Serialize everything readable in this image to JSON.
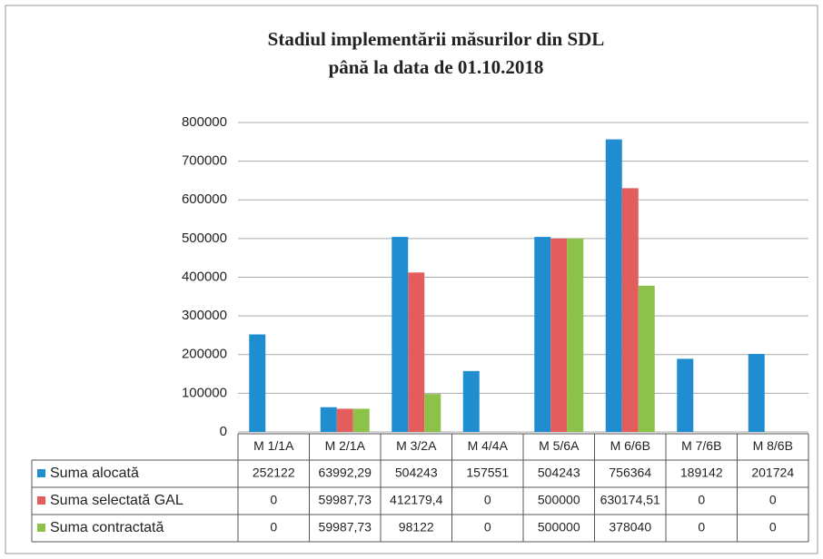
{
  "chart_data": {
    "type": "bar",
    "title": "Stadiul implementării măsurilor  din SDL",
    "subtitle": "până la data de  01.10.2018",
    "categories": [
      "M 1/1A",
      "M 2/1A",
      "M 3/2A",
      "M 4/4A",
      "M 5/6A",
      "M 6/6B",
      "M 7/6B",
      "M 8/6B"
    ],
    "series": [
      {
        "name": "Suma  alocată",
        "color": "#1f8dd0",
        "values": [
          252122,
          63992.29,
          504243,
          157551,
          504243,
          756364,
          189142,
          201724
        ],
        "value_labels": [
          "252122",
          "63992,29",
          "504243",
          "157551",
          "504243",
          "756364",
          "189142",
          "201724"
        ]
      },
      {
        "name": "Suma selectată GAL",
        "color": "#e35d5d",
        "values": [
          0,
          59987.73,
          412179.4,
          0,
          500000,
          630174.51,
          0,
          0
        ],
        "value_labels": [
          "0",
          "59987,73",
          "412179,4",
          "0",
          "500000",
          "630174,51",
          "0",
          "0"
        ]
      },
      {
        "name": "Suma contractată",
        "color": "#8cc24a",
        "values": [
          0,
          59987.73,
          98122,
          0,
          500000,
          378040,
          0,
          0
        ],
        "value_labels": [
          "0",
          "59987,73",
          "98122",
          "0",
          "500000",
          "378040",
          "0",
          "0"
        ]
      }
    ],
    "ylim": [
      0,
      800000
    ],
    "yticks": [
      0,
      100000,
      200000,
      300000,
      400000,
      500000,
      600000,
      700000,
      800000
    ],
    "grid": true
  }
}
